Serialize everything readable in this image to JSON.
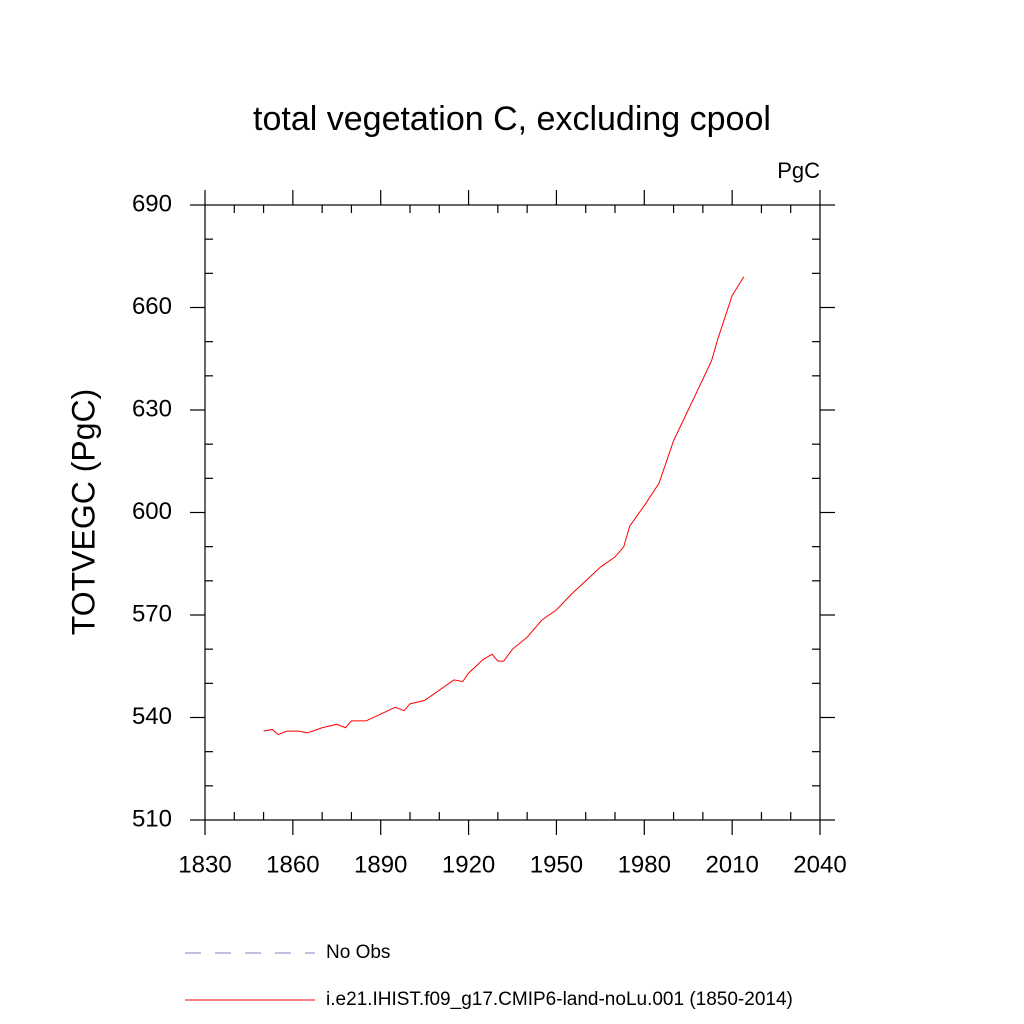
{
  "chart_data": {
    "type": "line",
    "title": "total vegetation C, excluding cpool",
    "units": "PgC",
    "y_label": "TOTVEGC  (PgC)",
    "x": [
      1850,
      1853,
      1855,
      1858,
      1862,
      1865,
      1870,
      1875,
      1878,
      1880,
      1885,
      1890,
      1895,
      1898,
      1900,
      1905,
      1910,
      1915,
      1918,
      1920,
      1925,
      1928,
      1930,
      1932,
      1935,
      1940,
      1945,
      1950,
      1955,
      1960,
      1965,
      1970,
      1973,
      1975,
      1980,
      1985,
      1990,
      1995,
      2000,
      2003,
      2005,
      2010,
      2014
    ],
    "series": [
      {
        "name": "i.e21.IHIST.f09_g17.CMIP6-land-noLu.001 (1850-2014)",
        "color": "#ff0000",
        "values": [
          536,
          536.5,
          535,
          536,
          536,
          535.5,
          537,
          538,
          537,
          539,
          539,
          541,
          543,
          542,
          544,
          545,
          548,
          551,
          550.5,
          553,
          557,
          558.5,
          556.5,
          556.5,
          560,
          563.5,
          568.5,
          571.5,
          576,
          580,
          584,
          587,
          590,
          596,
          602,
          608.5,
          621,
          630,
          639,
          644.5,
          650.5,
          663.5,
          669
        ]
      }
    ],
    "legend_extra": {
      "name": "No Obs",
      "color": "#8080c0"
    },
    "xlim": [
      1830,
      2040
    ],
    "xticks": [
      1830,
      1860,
      1890,
      1920,
      1950,
      1980,
      2010,
      2040
    ],
    "ylim": [
      510,
      690
    ],
    "yticks": [
      510,
      540,
      570,
      600,
      630,
      660,
      690
    ]
  }
}
